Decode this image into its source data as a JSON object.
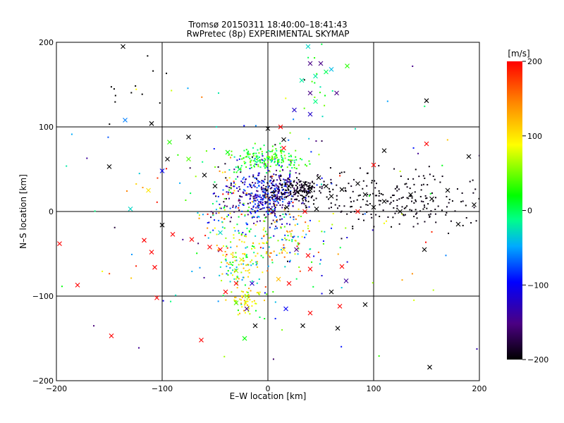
{
  "chart_data": {
    "type": "scatter",
    "title": "Tromsø 20150311 18:40:00–18:41:43",
    "subtitle": "RwPretec (8p) EXPERIMENTAL SKYMAP",
    "xlabel": "E–W location [km]",
    "ylabel": "N–S location [km]",
    "xlim": [
      -200,
      200
    ],
    "ylim": [
      -200,
      200
    ],
    "x_ticks": [
      -200,
      -100,
      0,
      100,
      200
    ],
    "y_ticks": [
      -200,
      -100,
      0,
      100,
      200
    ],
    "x_tick_labels": [
      "−200",
      "−100",
      "0",
      "100",
      "200"
    ],
    "y_tick_labels": [
      "−200",
      "−100",
      "0",
      "100",
      "200"
    ],
    "grid": true,
    "marker_styles": [
      "cross",
      "dot"
    ],
    "colorbar": {
      "label": "[m/s]",
      "range": [
        -200,
        200
      ],
      "ticks": [
        200,
        100,
        0,
        -100,
        -200
      ],
      "tick_labels": [
        "200",
        "100",
        "0",
        "−100",
        "−200"
      ],
      "colormap": [
        "#000000",
        "#4b0082",
        "#0000ff",
        "#00aaff",
        "#00ff88",
        "#00ff00",
        "#ffff00",
        "#ff8800",
        "#ff0000"
      ]
    },
    "series": [
      {
        "marker": "cross",
        "points": [
          {
            "x": -137,
            "y": 195,
            "v": -200
          },
          {
            "x": -150,
            "y": 53,
            "v": -200
          },
          {
            "x": -110,
            "y": 104,
            "v": -200
          },
          {
            "x": -95,
            "y": 62,
            "v": -200
          },
          {
            "x": -75,
            "y": 88,
            "v": -200
          },
          {
            "x": -60,
            "y": 43,
            "v": -200
          },
          {
            "x": -50,
            "y": 30,
            "v": -200
          },
          {
            "x": -100,
            "y": -16,
            "v": -200
          },
          {
            "x": 0,
            "y": 98,
            "v": -200
          },
          {
            "x": 15,
            "y": 85,
            "v": -200
          },
          {
            "x": 20,
            "y": 30,
            "v": -200
          },
          {
            "x": 28,
            "y": 23,
            "v": -200
          },
          {
            "x": 35,
            "y": 33,
            "v": -200
          },
          {
            "x": 40,
            "y": 28,
            "v": -200
          },
          {
            "x": 48,
            "y": 40,
            "v": -200
          },
          {
            "x": 55,
            "y": 30,
            "v": -200
          },
          {
            "x": 60,
            "y": 18,
            "v": -200
          },
          {
            "x": 70,
            "y": 26,
            "v": -200
          },
          {
            "x": 85,
            "y": 33,
            "v": -200
          },
          {
            "x": 92,
            "y": 20,
            "v": -200
          },
          {
            "x": 100,
            "y": 5,
            "v": -200
          },
          {
            "x": 110,
            "y": 12,
            "v": -200
          },
          {
            "x": 125,
            "y": 0,
            "v": -200
          },
          {
            "x": 135,
            "y": 20,
            "v": -200
          },
          {
            "x": 150,
            "y": 131,
            "v": -200
          },
          {
            "x": 110,
            "y": 72,
            "v": -200
          },
          {
            "x": 148,
            "y": -45,
            "v": -200
          },
          {
            "x": 155,
            "y": 15,
            "v": -200
          },
          {
            "x": 170,
            "y": 25,
            "v": -200
          },
          {
            "x": 180,
            "y": -15,
            "v": -200
          },
          {
            "x": 190,
            "y": 65,
            "v": -200
          },
          {
            "x": 195,
            "y": 8,
            "v": -200
          },
          {
            "x": 60,
            "y": -95,
            "v": -200
          },
          {
            "x": 66,
            "y": -138,
            "v": -200
          },
          {
            "x": 92,
            "y": -110,
            "v": -200
          },
          {
            "x": 153,
            "y": -184,
            "v": -200
          },
          {
            "x": -12,
            "y": -135,
            "v": -200
          },
          {
            "x": 33,
            "y": -135,
            "v": -200
          },
          {
            "x": 40,
            "y": 25,
            "v": -200
          },
          {
            "x": 18,
            "y": 5,
            "v": -200
          },
          {
            "x": 46,
            "y": 3,
            "v": -200
          },
          {
            "x": 50,
            "y": 175,
            "v": -150
          },
          {
            "x": 40,
            "y": 140,
            "v": -150
          },
          {
            "x": 40,
            "y": 175,
            "v": -150
          },
          {
            "x": 65,
            "y": 140,
            "v": -150
          },
          {
            "x": 25,
            "y": 120,
            "v": -120
          },
          {
            "x": 40,
            "y": 115,
            "v": -120
          },
          {
            "x": -20,
            "y": -115,
            "v": -150
          },
          {
            "x": -15,
            "y": -85,
            "v": -120
          },
          {
            "x": 10,
            "y": 15,
            "v": -180
          },
          {
            "x": 5,
            "y": 0,
            "v": -160
          },
          {
            "x": 27,
            "y": -45,
            "v": -150
          },
          {
            "x": 74,
            "y": -82,
            "v": -140
          },
          {
            "x": 17,
            "y": -115,
            "v": -100
          },
          {
            "x": -135,
            "y": 108,
            "v": -60
          },
          {
            "x": -100,
            "y": 48,
            "v": -100
          },
          {
            "x": 38,
            "y": 195,
            "v": -30
          },
          {
            "x": 32,
            "y": 155,
            "v": -20
          },
          {
            "x": 45,
            "y": 130,
            "v": -10
          },
          {
            "x": 55,
            "y": 165,
            "v": 0
          },
          {
            "x": 60,
            "y": 168,
            "v": -40
          },
          {
            "x": 75,
            "y": 172,
            "v": 30
          },
          {
            "x": 45,
            "y": 160,
            "v": -20
          },
          {
            "x": -130,
            "y": 3,
            "v": -30
          },
          {
            "x": -113,
            "y": 25,
            "v": 100
          },
          {
            "x": -75,
            "y": 62,
            "v": 40
          },
          {
            "x": -93,
            "y": 82,
            "v": 30
          },
          {
            "x": -38,
            "y": 70,
            "v": 20
          },
          {
            "x": -27,
            "y": 50,
            "v": 0
          },
          {
            "x": -45,
            "y": -25,
            "v": -30
          },
          {
            "x": -25,
            "y": -57,
            "v": 80
          },
          {
            "x": -30,
            "y": -70,
            "v": 60
          },
          {
            "x": -20,
            "y": -100,
            "v": 60
          },
          {
            "x": -30,
            "y": -108,
            "v": 40
          },
          {
            "x": -22,
            "y": -150,
            "v": 20
          },
          {
            "x": 10,
            "y": -80,
            "v": 120
          },
          {
            "x": 15,
            "y": -45,
            "v": 100
          },
          {
            "x": -197,
            "y": -38,
            "v": 200
          },
          {
            "x": -180,
            "y": -87,
            "v": 200
          },
          {
            "x": -148,
            "y": -147,
            "v": 200
          },
          {
            "x": -117,
            "y": -34,
            "v": 200
          },
          {
            "x": -110,
            "y": -48,
            "v": 200
          },
          {
            "x": -107,
            "y": -66,
            "v": 200
          },
          {
            "x": -105,
            "y": -102,
            "v": 200
          },
          {
            "x": -90,
            "y": -27,
            "v": 200
          },
          {
            "x": -72,
            "y": -33,
            "v": 200
          },
          {
            "x": -55,
            "y": -42,
            "v": 200
          },
          {
            "x": -45,
            "y": -45,
            "v": 200
          },
          {
            "x": -63,
            "y": -152,
            "v": 200
          },
          {
            "x": -40,
            "y": -95,
            "v": 200
          },
          {
            "x": -30,
            "y": -85,
            "v": 200
          },
          {
            "x": 20,
            "y": -85,
            "v": 200
          },
          {
            "x": 40,
            "y": -120,
            "v": 200
          },
          {
            "x": 68,
            "y": -112,
            "v": 200
          },
          {
            "x": 15,
            "y": 75,
            "v": 200
          },
          {
            "x": 12,
            "y": 100,
            "v": 200
          },
          {
            "x": 100,
            "y": 55,
            "v": 200
          },
          {
            "x": 150,
            "y": 80,
            "v": 200
          },
          {
            "x": 38,
            "y": -52,
            "v": 200
          },
          {
            "x": 40,
            "y": -68,
            "v": 200
          },
          {
            "x": 70,
            "y": -65,
            "v": 200
          },
          {
            "x": 85,
            "y": 0,
            "v": 200
          },
          {
            "x": 35,
            "y": 0,
            "v": 200
          }
        ]
      },
      {
        "marker": "dot",
        "clusters": [
          {
            "cx": 0,
            "cy": 20,
            "sx": 16,
            "sy": 16,
            "n": 420,
            "vmin": -200,
            "vmax": -60
          },
          {
            "cx": 0,
            "cy": 62,
            "sx": 17,
            "sy": 7,
            "n": 180,
            "vmin": -20,
            "vmax": 60
          },
          {
            "cx": 30,
            "cy": 27,
            "sx": 12,
            "sy": 7,
            "n": 150,
            "vmin": -200,
            "vmax": -180
          },
          {
            "cx": 110,
            "cy": 12,
            "sx": 45,
            "sy": 17,
            "n": 220,
            "vmin": -200,
            "vmax": -190
          },
          {
            "cx": -25,
            "cy": -60,
            "sx": 13,
            "sy": 28,
            "n": 150,
            "vmin": -60,
            "vmax": 140
          },
          {
            "cx": -20,
            "cy": -105,
            "sx": 9,
            "sy": 8,
            "n": 45,
            "vmin": 60,
            "vmax": 140
          },
          {
            "cx": -40,
            "cy": 15,
            "sx": 14,
            "sy": 28,
            "n": 110,
            "vmin": -200,
            "vmax": 200
          },
          {
            "cx": 20,
            "cy": -30,
            "sx": 20,
            "sy": 22,
            "n": 120,
            "vmin": -120,
            "vmax": 200
          },
          {
            "cx": 45,
            "cy": 150,
            "sx": 7,
            "sy": 20,
            "n": 12,
            "vmin": -40,
            "vmax": 60
          },
          {
            "cx": 0,
            "cy": 0,
            "sx": 110,
            "sy": 100,
            "n": 140,
            "vmin": -200,
            "vmax": 200
          },
          {
            "cx": -130,
            "cy": 140,
            "sx": 20,
            "sy": 20,
            "n": 12,
            "vmin": -200,
            "vmax": -200
          }
        ]
      }
    ]
  }
}
